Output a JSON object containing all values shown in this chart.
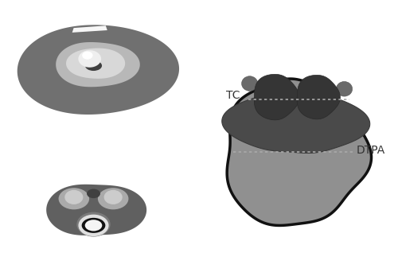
{
  "background_color": "#ffffff",
  "fig_width": 5.0,
  "fig_height": 3.52,
  "ct_bg": "#000000",
  "outer_shape_color": "#909090",
  "outer_shape_edge": "#111111",
  "inner_dark_color": "#4a4a4a",
  "condyle_color": "#353535",
  "condyle_surface_color": "#6a6a6a",
  "tc_line_color": "#aaaaaa",
  "dtpa_line_color": "#aaaaaa",
  "label_color": "#333333",
  "tc_label": "TC",
  "dtpa_label": "DTPA"
}
